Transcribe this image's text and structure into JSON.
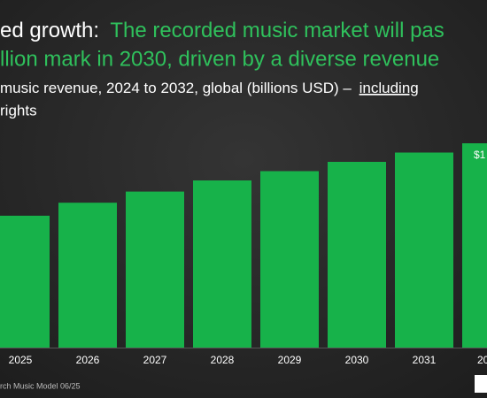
{
  "chart_data": {
    "type": "bar",
    "title_lead": "ed growth:",
    "title": "The recorded music market will pas",
    "title_line2": "llion mark in 2030, driven by a diverse revenue",
    "subtitle": "music revenue, 2024 to 2032, global (billions USD) –",
    "subtitle_link": "including",
    "subtitle_line2": "rights",
    "annotation": "$1",
    "source": "rch Music Model 06/25",
    "categories": [
      "2025",
      "2026",
      "2027",
      "2028",
      "2029",
      "2030",
      "2031",
      "20"
    ],
    "values": [
      71,
      78,
      84,
      90,
      95,
      100,
      105,
      110
    ],
    "color": "#17b24a"
  }
}
